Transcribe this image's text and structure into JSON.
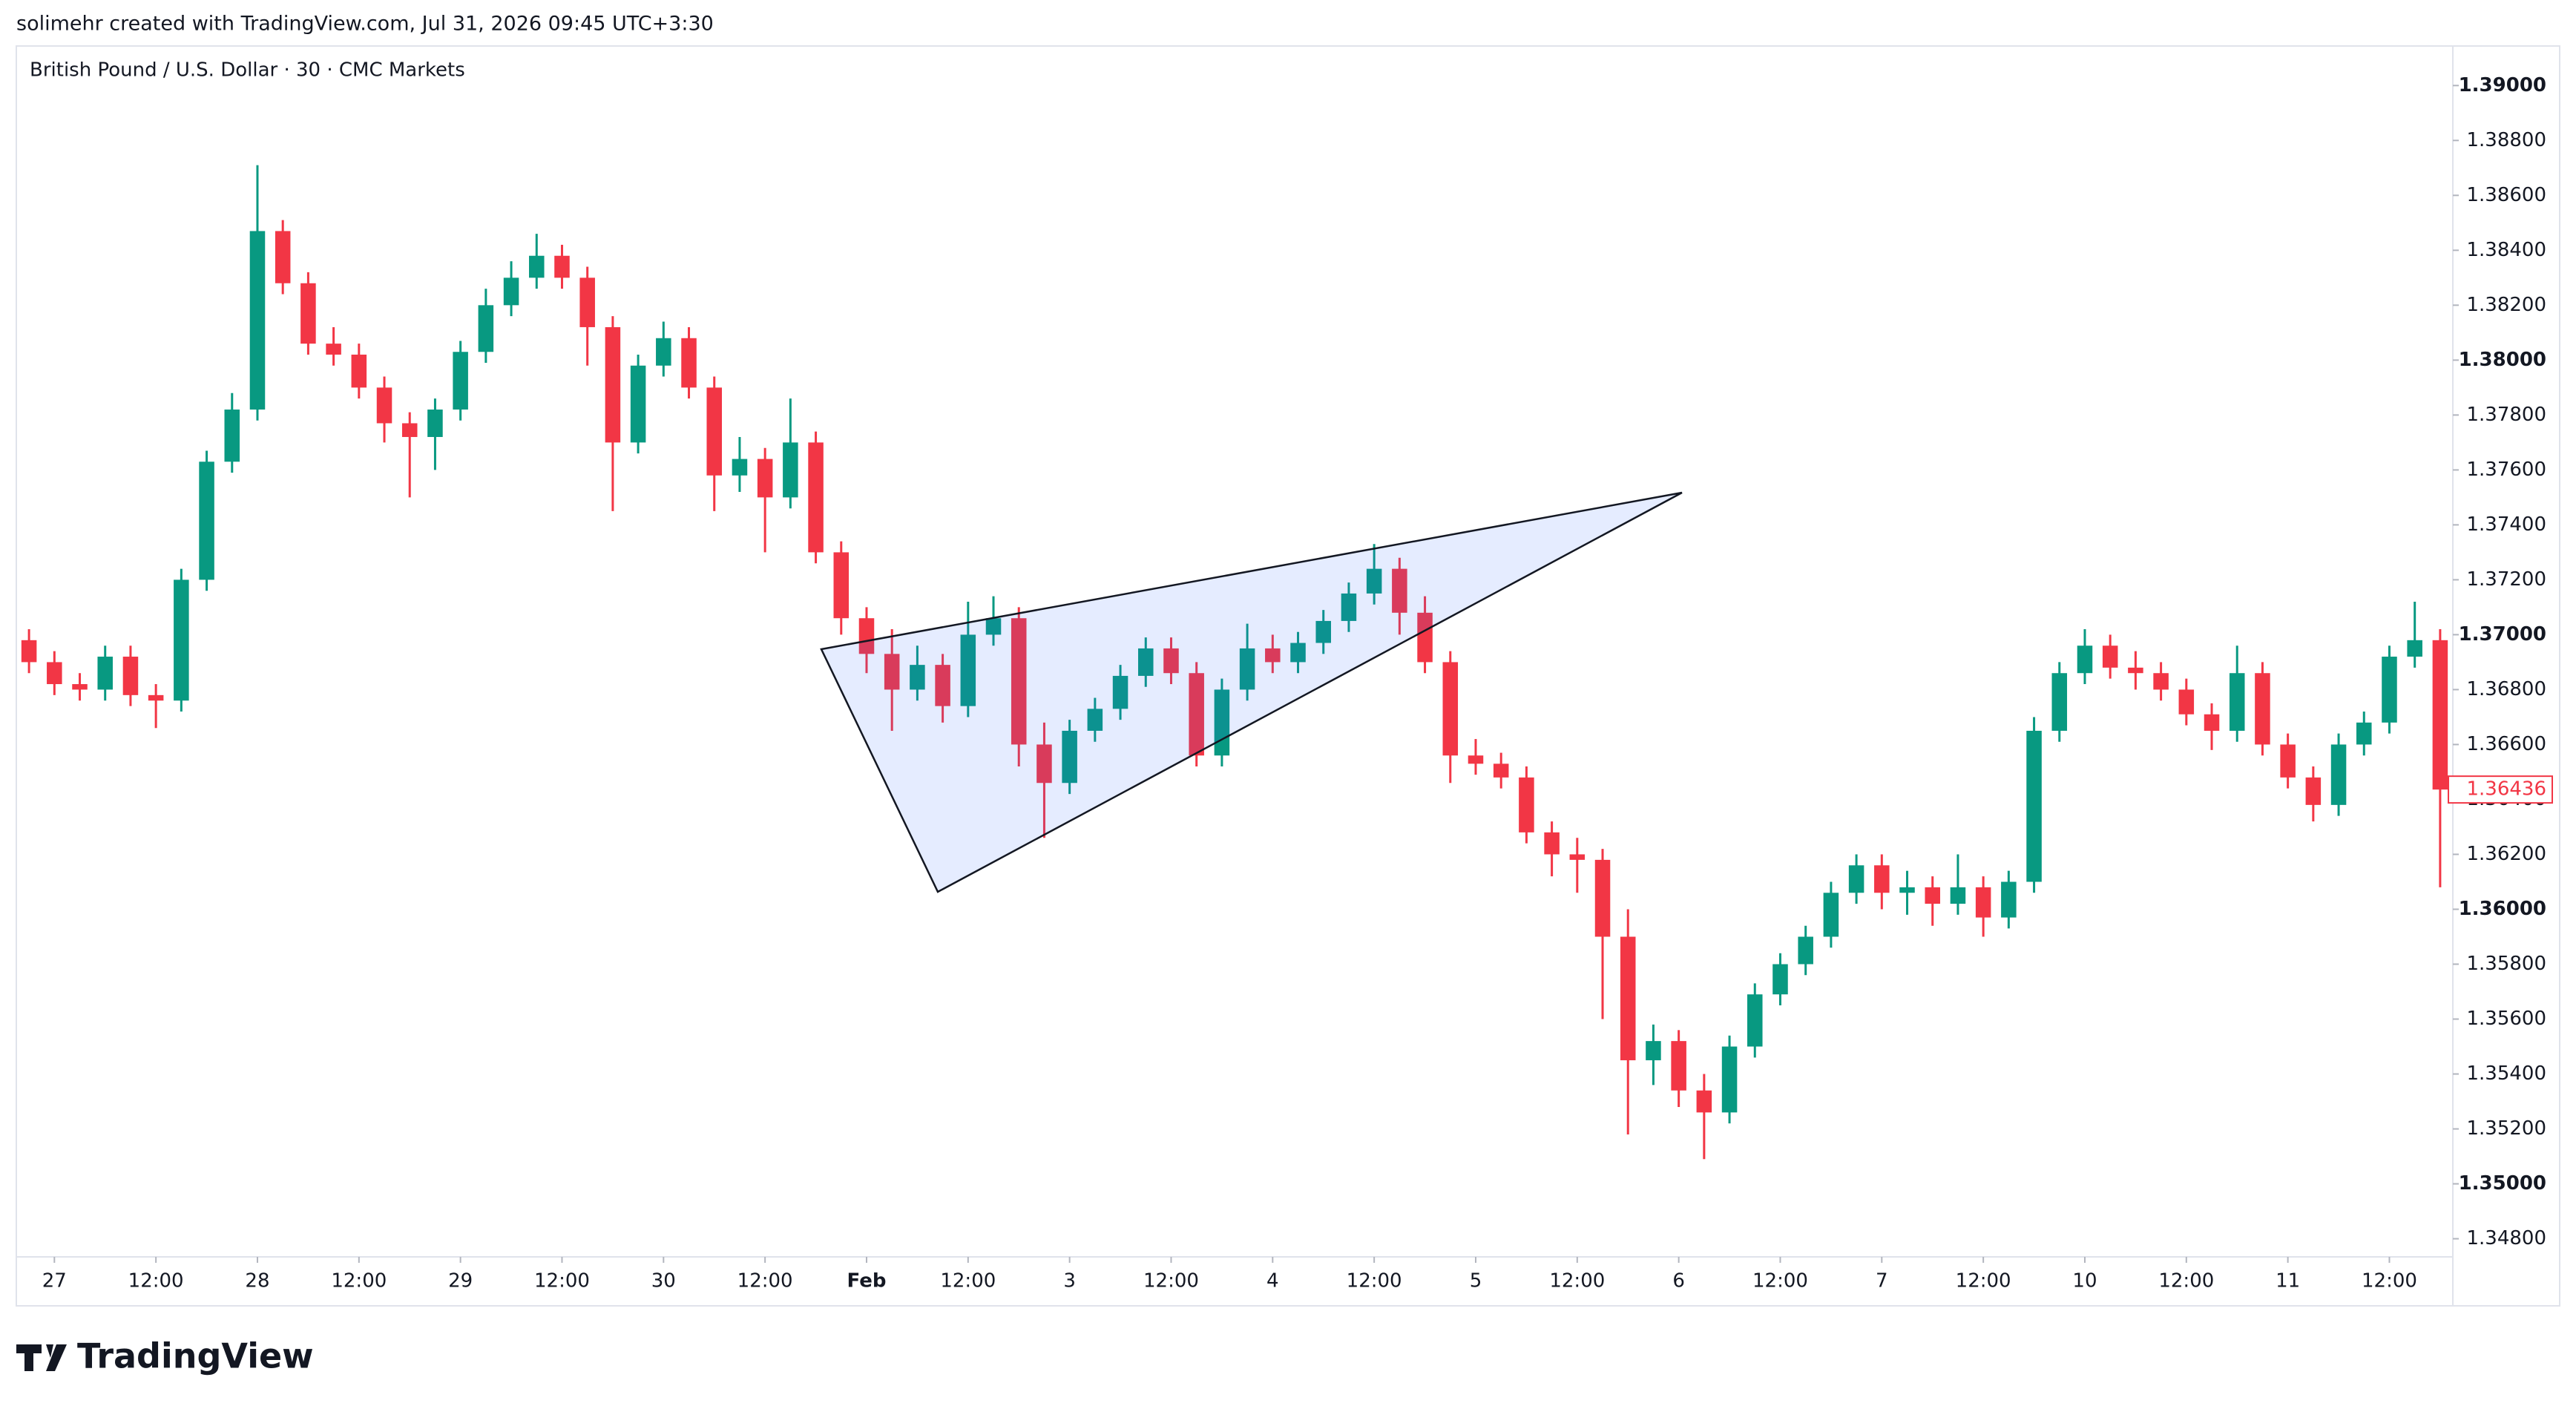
{
  "credit": "solimehr created with TradingView.com, Jul 31, 2026 09:45 UTC+3:30",
  "brand": "TradingView",
  "chart_data": {
    "type": "candlestick",
    "title": "British Pound / U.S. Dollar · 30 · CMC Markets",
    "up_color": "#089981",
    "down_color": "#f23645",
    "ylim": [
      1.34734,
      1.39144
    ],
    "xlim": [
      -0.5,
      95.5
    ],
    "yticks": [
      {
        "value": 1.348,
        "label": "1.34800"
      },
      {
        "value": 1.35,
        "label": "1.35000"
      },
      {
        "value": 1.352,
        "label": "1.35200"
      },
      {
        "value": 1.354,
        "label": "1.35400"
      },
      {
        "value": 1.356,
        "label": "1.35600"
      },
      {
        "value": 1.358,
        "label": "1.35800"
      },
      {
        "value": 1.36,
        "label": "1.36000"
      },
      {
        "value": 1.362,
        "label": "1.36200"
      },
      {
        "value": 1.364,
        "label": "1.36400"
      },
      {
        "value": 1.366,
        "label": "1.36600"
      },
      {
        "value": 1.368,
        "label": "1.36800"
      },
      {
        "value": 1.37,
        "label": "1.37000"
      },
      {
        "value": 1.372,
        "label": "1.37200"
      },
      {
        "value": 1.374,
        "label": "1.37400"
      },
      {
        "value": 1.376,
        "label": "1.37600"
      },
      {
        "value": 1.378,
        "label": "1.37800"
      },
      {
        "value": 1.38,
        "label": "1.38000"
      },
      {
        "value": 1.382,
        "label": "1.38200"
      },
      {
        "value": 1.384,
        "label": "1.38400"
      },
      {
        "value": 1.386,
        "label": "1.38600"
      },
      {
        "value": 1.388,
        "label": "1.38800"
      },
      {
        "value": 1.39,
        "label": "1.39000"
      }
    ],
    "xticks": [
      {
        "value": 1,
        "label": "27"
      },
      {
        "value": 5,
        "label": "12:00"
      },
      {
        "value": 9,
        "label": "28"
      },
      {
        "value": 13,
        "label": "12:00"
      },
      {
        "value": 17,
        "label": "29"
      },
      {
        "value": 21,
        "label": "12:00"
      },
      {
        "value": 25,
        "label": "30"
      },
      {
        "value": 29,
        "label": "12:00"
      },
      {
        "value": 33,
        "label": "Feb"
      },
      {
        "value": 37,
        "label": "12:00"
      },
      {
        "value": 41,
        "label": "3"
      },
      {
        "value": 45,
        "label": "12:00"
      },
      {
        "value": 49,
        "label": "4"
      },
      {
        "value": 53,
        "label": "12:00"
      },
      {
        "value": 57,
        "label": "5"
      },
      {
        "value": 61,
        "label": "12:00"
      },
      {
        "value": 65,
        "label": "6"
      },
      {
        "value": 69,
        "label": "12:00"
      },
      {
        "value": 73,
        "label": "7"
      },
      {
        "value": 77,
        "label": "12:00"
      },
      {
        "value": 81,
        "label": "10"
      },
      {
        "value": 85,
        "label": "12:00"
      },
      {
        "value": 89,
        "label": "11"
      },
      {
        "value": 93,
        "label": "12:00"
      }
    ],
    "candles": [
      [
        1.3698,
        1.3702,
        1.3686,
        1.369
      ],
      [
        1.369,
        1.3694,
        1.3678,
        1.3682
      ],
      [
        1.3682,
        1.3686,
        1.3676,
        1.368
      ],
      [
        1.368,
        1.3696,
        1.3676,
        1.3692
      ],
      [
        1.3692,
        1.3696,
        1.3674,
        1.3678
      ],
      [
        1.3678,
        1.3682,
        1.3666,
        1.3676
      ],
      [
        1.3676,
        1.3724,
        1.3672,
        1.372
      ],
      [
        1.372,
        1.3767,
        1.3716,
        1.3763
      ],
      [
        1.3763,
        1.3788,
        1.3759,
        1.3782
      ],
      [
        1.3782,
        1.3871,
        1.3778,
        1.3847
      ],
      [
        1.3847,
        1.3851,
        1.3824,
        1.3828
      ],
      [
        1.3828,
        1.3832,
        1.3802,
        1.3806
      ],
      [
        1.3806,
        1.3812,
        1.3798,
        1.3802
      ],
      [
        1.3802,
        1.3806,
        1.3786,
        1.379
      ],
      [
        1.379,
        1.3794,
        1.377,
        1.3777
      ],
      [
        1.3777,
        1.3781,
        1.375,
        1.3772
      ],
      [
        1.3772,
        1.3786,
        1.376,
        1.3782
      ],
      [
        1.3782,
        1.3807,
        1.3778,
        1.3803
      ],
      [
        1.3803,
        1.3826,
        1.3799,
        1.382
      ],
      [
        1.382,
        1.3836,
        1.3816,
        1.383
      ],
      [
        1.383,
        1.3846,
        1.3826,
        1.3838
      ],
      [
        1.3838,
        1.3842,
        1.3826,
        1.383
      ],
      [
        1.383,
        1.3834,
        1.3798,
        1.3812
      ],
      [
        1.3812,
        1.3816,
        1.3745,
        1.377
      ],
      [
        1.377,
        1.3802,
        1.3766,
        1.3798
      ],
      [
        1.3798,
        1.3814,
        1.3794,
        1.3808
      ],
      [
        1.3808,
        1.3812,
        1.3786,
        1.379
      ],
      [
        1.379,
        1.3794,
        1.3745,
        1.3758
      ],
      [
        1.3758,
        1.3772,
        1.3752,
        1.3764
      ],
      [
        1.3764,
        1.3768,
        1.373,
        1.375
      ],
      [
        1.375,
        1.3786,
        1.3746,
        1.377
      ],
      [
        1.377,
        1.3774,
        1.3726,
        1.373
      ],
      [
        1.373,
        1.3734,
        1.37,
        1.3706
      ],
      [
        1.3706,
        1.371,
        1.3686,
        1.3693
      ],
      [
        1.3693,
        1.3702,
        1.3665,
        1.368
      ],
      [
        1.368,
        1.3696,
        1.3676,
        1.3689
      ],
      [
        1.3689,
        1.3693,
        1.3668,
        1.3674
      ],
      [
        1.3674,
        1.3712,
        1.367,
        1.37
      ],
      [
        1.37,
        1.3714,
        1.3696,
        1.3706
      ],
      [
        1.3706,
        1.371,
        1.3652,
        1.366
      ],
      [
        1.366,
        1.3668,
        1.3626,
        1.3646
      ],
      [
        1.3646,
        1.3669,
        1.3642,
        1.3665
      ],
      [
        1.3665,
        1.3677,
        1.3661,
        1.3673
      ],
      [
        1.3673,
        1.3689,
        1.3669,
        1.3685
      ],
      [
        1.3685,
        1.3699,
        1.3681,
        1.3695
      ],
      [
        1.3695,
        1.3699,
        1.3682,
        1.3686
      ],
      [
        1.3686,
        1.369,
        1.3652,
        1.3656
      ],
      [
        1.3656,
        1.3684,
        1.3652,
        1.368
      ],
      [
        1.368,
        1.3704,
        1.3676,
        1.3695
      ],
      [
        1.3695,
        1.37,
        1.3686,
        1.369
      ],
      [
        1.369,
        1.3701,
        1.3686,
        1.3697
      ],
      [
        1.3697,
        1.3709,
        1.3693,
        1.3705
      ],
      [
        1.3705,
        1.3719,
        1.3701,
        1.3715
      ],
      [
        1.3715,
        1.3733,
        1.3711,
        1.3724
      ],
      [
        1.3724,
        1.3728,
        1.37,
        1.3708
      ],
      [
        1.3708,
        1.3714,
        1.3686,
        1.369
      ],
      [
        1.369,
        1.3694,
        1.3646,
        1.3656
      ],
      [
        1.3656,
        1.3662,
        1.3649,
        1.3653
      ],
      [
        1.3653,
        1.3657,
        1.3644,
        1.3648
      ],
      [
        1.3648,
        1.3652,
        1.3624,
        1.3628
      ],
      [
        1.3628,
        1.3632,
        1.3612,
        1.362
      ],
      [
        1.362,
        1.3626,
        1.3606,
        1.3618
      ],
      [
        1.3618,
        1.3622,
        1.356,
        1.359
      ],
      [
        1.359,
        1.36,
        1.3518,
        1.3545
      ],
      [
        1.3545,
        1.3558,
        1.3536,
        1.3552
      ],
      [
        1.3552,
        1.3556,
        1.3528,
        1.3534
      ],
      [
        1.3534,
        1.354,
        1.3509,
        1.3526
      ],
      [
        1.3526,
        1.3554,
        1.3522,
        1.355
      ],
      [
        1.355,
        1.3573,
        1.3546,
        1.3569
      ],
      [
        1.3569,
        1.3584,
        1.3565,
        1.358
      ],
      [
        1.358,
        1.3594,
        1.3576,
        1.359
      ],
      [
        1.359,
        1.361,
        1.3586,
        1.3606
      ],
      [
        1.3606,
        1.362,
        1.3602,
        1.3616
      ],
      [
        1.3616,
        1.362,
        1.36,
        1.3606
      ],
      [
        1.3606,
        1.3614,
        1.3598,
        1.3608
      ],
      [
        1.3608,
        1.3612,
        1.3594,
        1.3602
      ],
      [
        1.3602,
        1.362,
        1.3598,
        1.3608
      ],
      [
        1.3608,
        1.3612,
        1.359,
        1.3597
      ],
      [
        1.3597,
        1.3614,
        1.3593,
        1.361
      ],
      [
        1.361,
        1.367,
        1.3606,
        1.3665
      ],
      [
        1.3665,
        1.369,
        1.3661,
        1.3686
      ],
      [
        1.3686,
        1.3702,
        1.3682,
        1.3696
      ],
      [
        1.3696,
        1.37,
        1.3684,
        1.3688
      ],
      [
        1.3688,
        1.3694,
        1.368,
        1.3686
      ],
      [
        1.3686,
        1.369,
        1.3676,
        1.368
      ],
      [
        1.368,
        1.3684,
        1.3667,
        1.3671
      ],
      [
        1.3671,
        1.3675,
        1.3658,
        1.3665
      ],
      [
        1.3665,
        1.3696,
        1.3661,
        1.3686
      ],
      [
        1.3686,
        1.369,
        1.3656,
        1.366
      ],
      [
        1.366,
        1.3664,
        1.3644,
        1.3648
      ],
      [
        1.3648,
        1.3652,
        1.3632,
        1.3638
      ],
      [
        1.3638,
        1.3664,
        1.3634,
        1.366
      ],
      [
        1.366,
        1.3672,
        1.3656,
        1.3668
      ],
      [
        1.3668,
        1.3696,
        1.3664,
        1.3692
      ],
      [
        1.3692,
        1.3712,
        1.3688,
        1.3698
      ],
      [
        1.3698,
        1.3702,
        1.3608,
        1.36436
      ]
    ]
  }
}
